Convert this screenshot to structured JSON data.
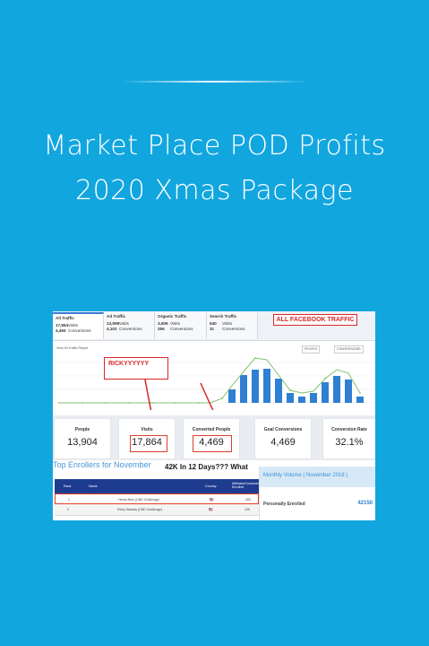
{
  "title": {
    "line1": "Market Place POD Profits",
    "line2": "2020 Xmas Package"
  },
  "screenshot": {
    "tabs": [
      {
        "name": "All Traffic",
        "v1": "17,864",
        "l1": "Visits",
        "v2": "4,469",
        "l2": "Conversions"
      },
      {
        "name": "Ad Traffic",
        "v1": "13,908",
        "l1": "Visits",
        "v2": "4,102",
        "l2": "Conversions"
      },
      {
        "name": "Organic Traffic",
        "v1": "3,506",
        "l1": "Visits",
        "v2": "256",
        "l2": "Conversions"
      },
      {
        "name": "Search Traffic",
        "v1": "540",
        "l1": "Visits",
        "v2": "31",
        "l2": "Conversions"
      }
    ],
    "callout_fb": "ALL FACEBOOK TRAFFIC",
    "callout_ricky": "RICKYYYYYY",
    "chart_link": "View All Traffic Report",
    "dropdown_people": "PEOPLE",
    "dropdown_conversions": "CONVERSIONS",
    "cards": [
      {
        "label": "People",
        "value": "13,904"
      },
      {
        "label": "Visits",
        "value": "17,864"
      },
      {
        "label": "Converted People",
        "value": "4,469"
      },
      {
        "label": "Goal Conversions",
        "value": "4,469"
      },
      {
        "label": "Conversion Rate",
        "value": "32.1%"
      }
    ],
    "enrollers_title": "Top Enrollers for November",
    "red_caption": "42K In 12 Days??? What",
    "table": {
      "headers": [
        "Rank",
        "Name",
        "Country",
        "Affiliates/Customers Enrolled"
      ],
      "rows": [
        {
          "rank": "1",
          "name": "Hemp Bros (CBD Challenge)",
          "country": "🇺🇸",
          "count": "283"
        },
        {
          "rank": "2",
          "name": "Ricky Wakata (CBD Challenge)",
          "country": "🇺🇸",
          "count": "125"
        }
      ]
    },
    "monthly": {
      "title": "Monthly Volume ( November 2018 )",
      "label": "Personally Enrolled",
      "value": "42150"
    }
  }
}
